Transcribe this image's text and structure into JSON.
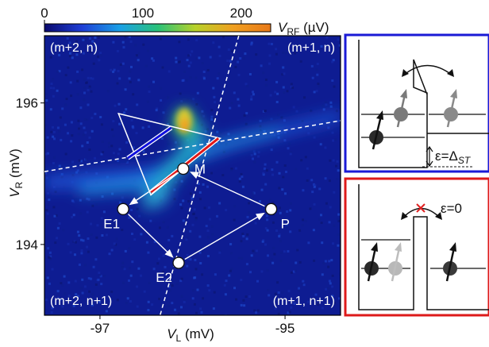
{
  "chart_data": {
    "type": "heatmap",
    "colorbar": {
      "label_main": "V",
      "label_sub": "RF",
      "label_unit": " (µV)",
      "ticks": [
        0,
        100,
        200
      ],
      "range": [
        0,
        230
      ],
      "colors": [
        "#0a0a6e",
        "#1f3fd6",
        "#1aa0e6",
        "#29c27a",
        "#b8d22a",
        "#f0a020",
        "#e87818"
      ]
    },
    "xaxis": {
      "label_main": "V",
      "label_sub": "L",
      "label_unit": " (mV)",
      "ticks": [
        -97,
        -95
      ],
      "range": [
        -97.6,
        -94.4
      ]
    },
    "yaxis": {
      "label_main": "V",
      "label_sub": "R",
      "label_unit": " (mV)",
      "ticks": [
        194,
        196
      ],
      "range": [
        193.0,
        196.95
      ]
    },
    "regions": [
      {
        "text": "(m+2, n)",
        "corner": "top-left"
      },
      {
        "text": "(m+1, n)",
        "corner": "top-right"
      },
      {
        "text": "(m+2, n+1)",
        "corner": "bottom-left"
      },
      {
        "text": "(m+1, n+1)",
        "corner": "bottom-right"
      }
    ],
    "points": [
      {
        "name": "M",
        "x": -96.1,
        "y": 195.07
      },
      {
        "name": "E1",
        "x": -96.75,
        "y": 194.5
      },
      {
        "name": "E2",
        "x": -96.15,
        "y": 193.74
      },
      {
        "name": "P",
        "x": -95.15,
        "y": 194.5
      }
    ],
    "pulse_path": [
      "M",
      "E1",
      "E2",
      "P",
      "M"
    ],
    "triangle": [
      {
        "x": -96.8,
        "y": 195.85
      },
      {
        "x": -95.7,
        "y": 195.5
      },
      {
        "x": -96.45,
        "y": 194.7
      }
    ],
    "segments": [
      {
        "color": "#1010dd",
        "from": {
          "x": -96.7,
          "y": 195.22
        },
        "to": {
          "x": -96.23,
          "y": 195.65
        }
      },
      {
        "color": "#e01818",
        "from": {
          "x": -96.45,
          "y": 194.74
        },
        "to": {
          "x": -95.72,
          "y": 195.5
        }
      }
    ],
    "charge_lines": [
      {
        "from": {
          "x": -97.6,
          "y": 195.03
        },
        "to": {
          "x": -94.4,
          "y": 195.75
        }
      },
      {
        "from": {
          "x": -95.5,
          "y": 196.95
        },
        "to": {
          "x": -96.35,
          "y": 193.0
        }
      }
    ]
  },
  "insets": {
    "top": {
      "border_color": "#1a1ad6",
      "label_eps": "ε",
      "label_eq": "=Δ",
      "label_sub": "ST"
    },
    "bottom": {
      "border_color": "#dd1a1a",
      "label": "ε=0"
    }
  }
}
